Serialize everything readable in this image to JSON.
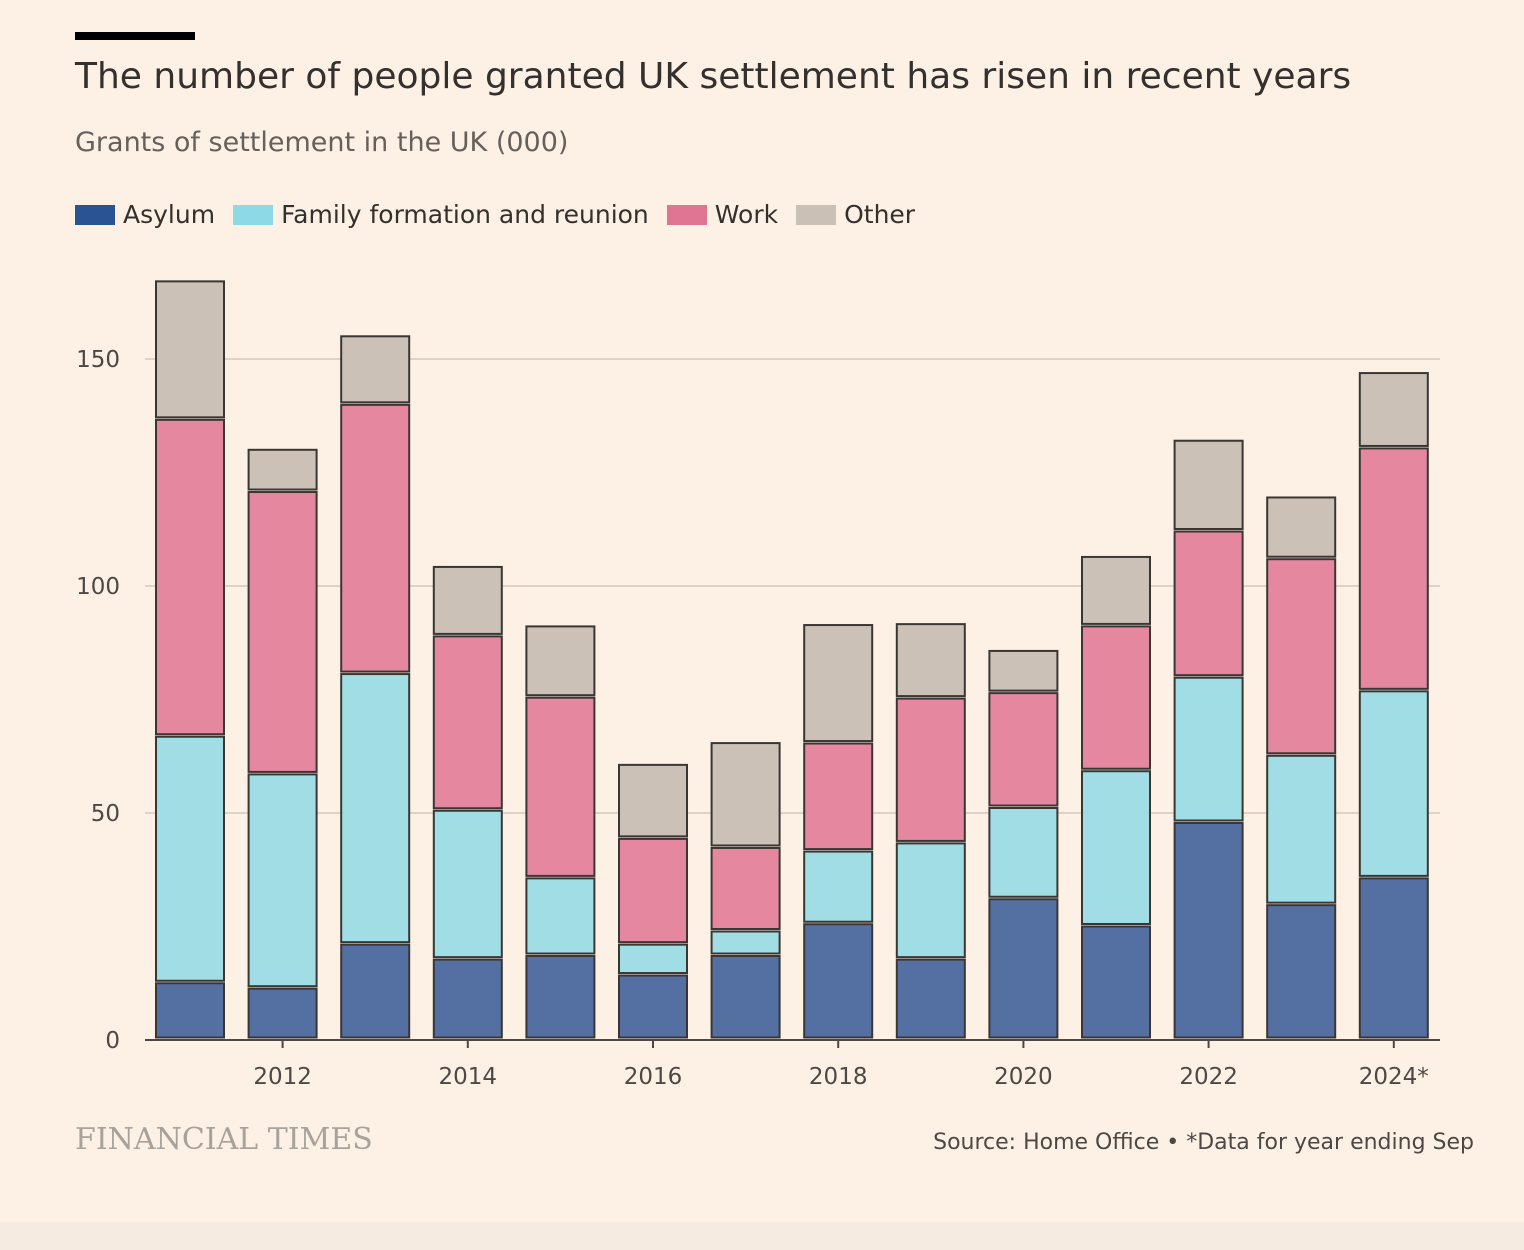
{
  "header": {
    "title": "The number of people granted UK settlement has risen in recent years",
    "subtitle": "Grants of settlement in the UK (000)"
  },
  "legend": [
    {
      "label": "Asylum",
      "color": "#2a5394"
    },
    {
      "label": "Family formation and reunion",
      "color": "#8ed9e6"
    },
    {
      "label": "Work",
      "color": "#e07593"
    },
    {
      "label": "Other",
      "color": "#c9c0b6"
    }
  ],
  "chart_data": {
    "type": "bar",
    "stacked": true,
    "years": [
      2011,
      2012,
      2013,
      2014,
      2015,
      2016,
      2017,
      2018,
      2019,
      2020,
      2021,
      2022,
      2023,
      2024
    ],
    "series": [
      {
        "name": "Asylum",
        "color": "#5470a2",
        "values": [
          12.5,
          11.3,
          21,
          17.7,
          18.5,
          14.2,
          18.5,
          25.5,
          17.7,
          31,
          25,
          47.8,
          29.7,
          35.6
        ]
      },
      {
        "name": "Family formation and reunion",
        "color": "#a0dde4",
        "values": [
          54.3,
          47.2,
          59.6,
          32.8,
          17.1,
          6.8,
          5.4,
          16,
          25.6,
          20.1,
          34.2,
          32,
          32.9,
          41.2
        ]
      },
      {
        "name": "Work",
        "color": "#e5889f",
        "values": [
          69.8,
          62.2,
          59.3,
          38.4,
          39.8,
          23.3,
          18.4,
          23.8,
          31.9,
          25.3,
          31.9,
          32.2,
          43.3,
          53.5
        ]
      },
      {
        "name": "Other",
        "color": "#cbc1b7",
        "values": [
          30.5,
          9.3,
          15.1,
          15.3,
          15.7,
          16.3,
          23.1,
          26.1,
          16.4,
          9.3,
          15.3,
          20,
          13.6,
          16.6
        ]
      }
    ],
    "x_tick_labels": [
      {
        "year": 2012,
        "label": "2012"
      },
      {
        "year": 2014,
        "label": "2014"
      },
      {
        "year": 2016,
        "label": "2016"
      },
      {
        "year": 2018,
        "label": "2018"
      },
      {
        "year": 2020,
        "label": "2020"
      },
      {
        "year": 2022,
        "label": "2022"
      },
      {
        "year": 2024,
        "label": "2024*"
      }
    ],
    "y_ticks": [
      0,
      50,
      100,
      150
    ],
    "ylim": [
      0,
      170
    ],
    "ylabel": "Grants of settlement in the UK (000)",
    "grid": true
  },
  "footer": {
    "brand": "FINANCIAL TIMES",
    "source": "Source: Home Office • *Data for year ending Sep"
  }
}
